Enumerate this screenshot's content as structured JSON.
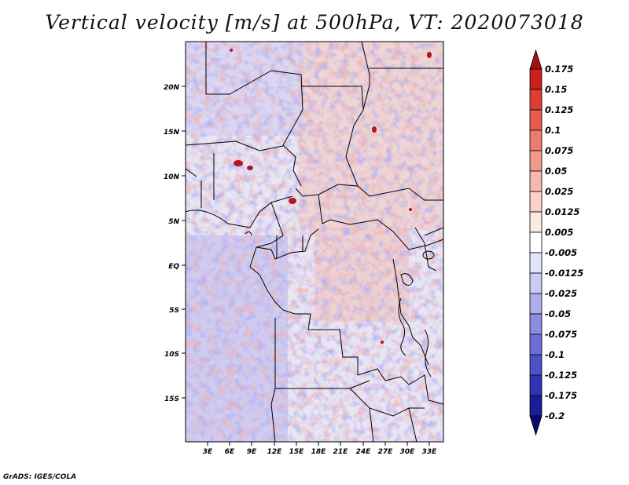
{
  "title": "Vertical velocity [m/s] at 500hPa, VT: 2020073018",
  "footer": "GrADS: IGES/COLA",
  "map": {
    "variable": "Vertical velocity",
    "units": "m/s",
    "level": "500hPa",
    "valid_time": "2020073018",
    "lat_labels": [
      "20N",
      "15N",
      "10N",
      "5N",
      "EQ",
      "5S",
      "10S",
      "15S"
    ],
    "lon_labels": [
      "3E",
      "6E",
      "9E",
      "12E",
      "15E",
      "18E",
      "21E",
      "24E",
      "27E",
      "30E",
      "33E"
    ]
  },
  "colorbar": {
    "labels": [
      "0.175",
      "0.15",
      "0.125",
      "0.1",
      "0.075",
      "0.05",
      "0.025",
      "0.0125",
      "0.005",
      "-0.005",
      "-0.0125",
      "-0.025",
      "-0.05",
      "-0.075",
      "-0.1",
      "-0.125",
      "-0.175",
      "-0.2"
    ],
    "colors": [
      "#a50f15",
      "#c8201e",
      "#dc3e35",
      "#e55b50",
      "#ec7a6e",
      "#f19a8e",
      "#f6b8ad",
      "#fad2c9",
      "#fde9e4",
      "#ffffff",
      "#e4e4fb",
      "#cbcbf6",
      "#acacee",
      "#8c8ce2",
      "#6d6dd6",
      "#4f4fc6",
      "#3333b2",
      "#1c1c96",
      "#0a0a72"
    ]
  }
}
